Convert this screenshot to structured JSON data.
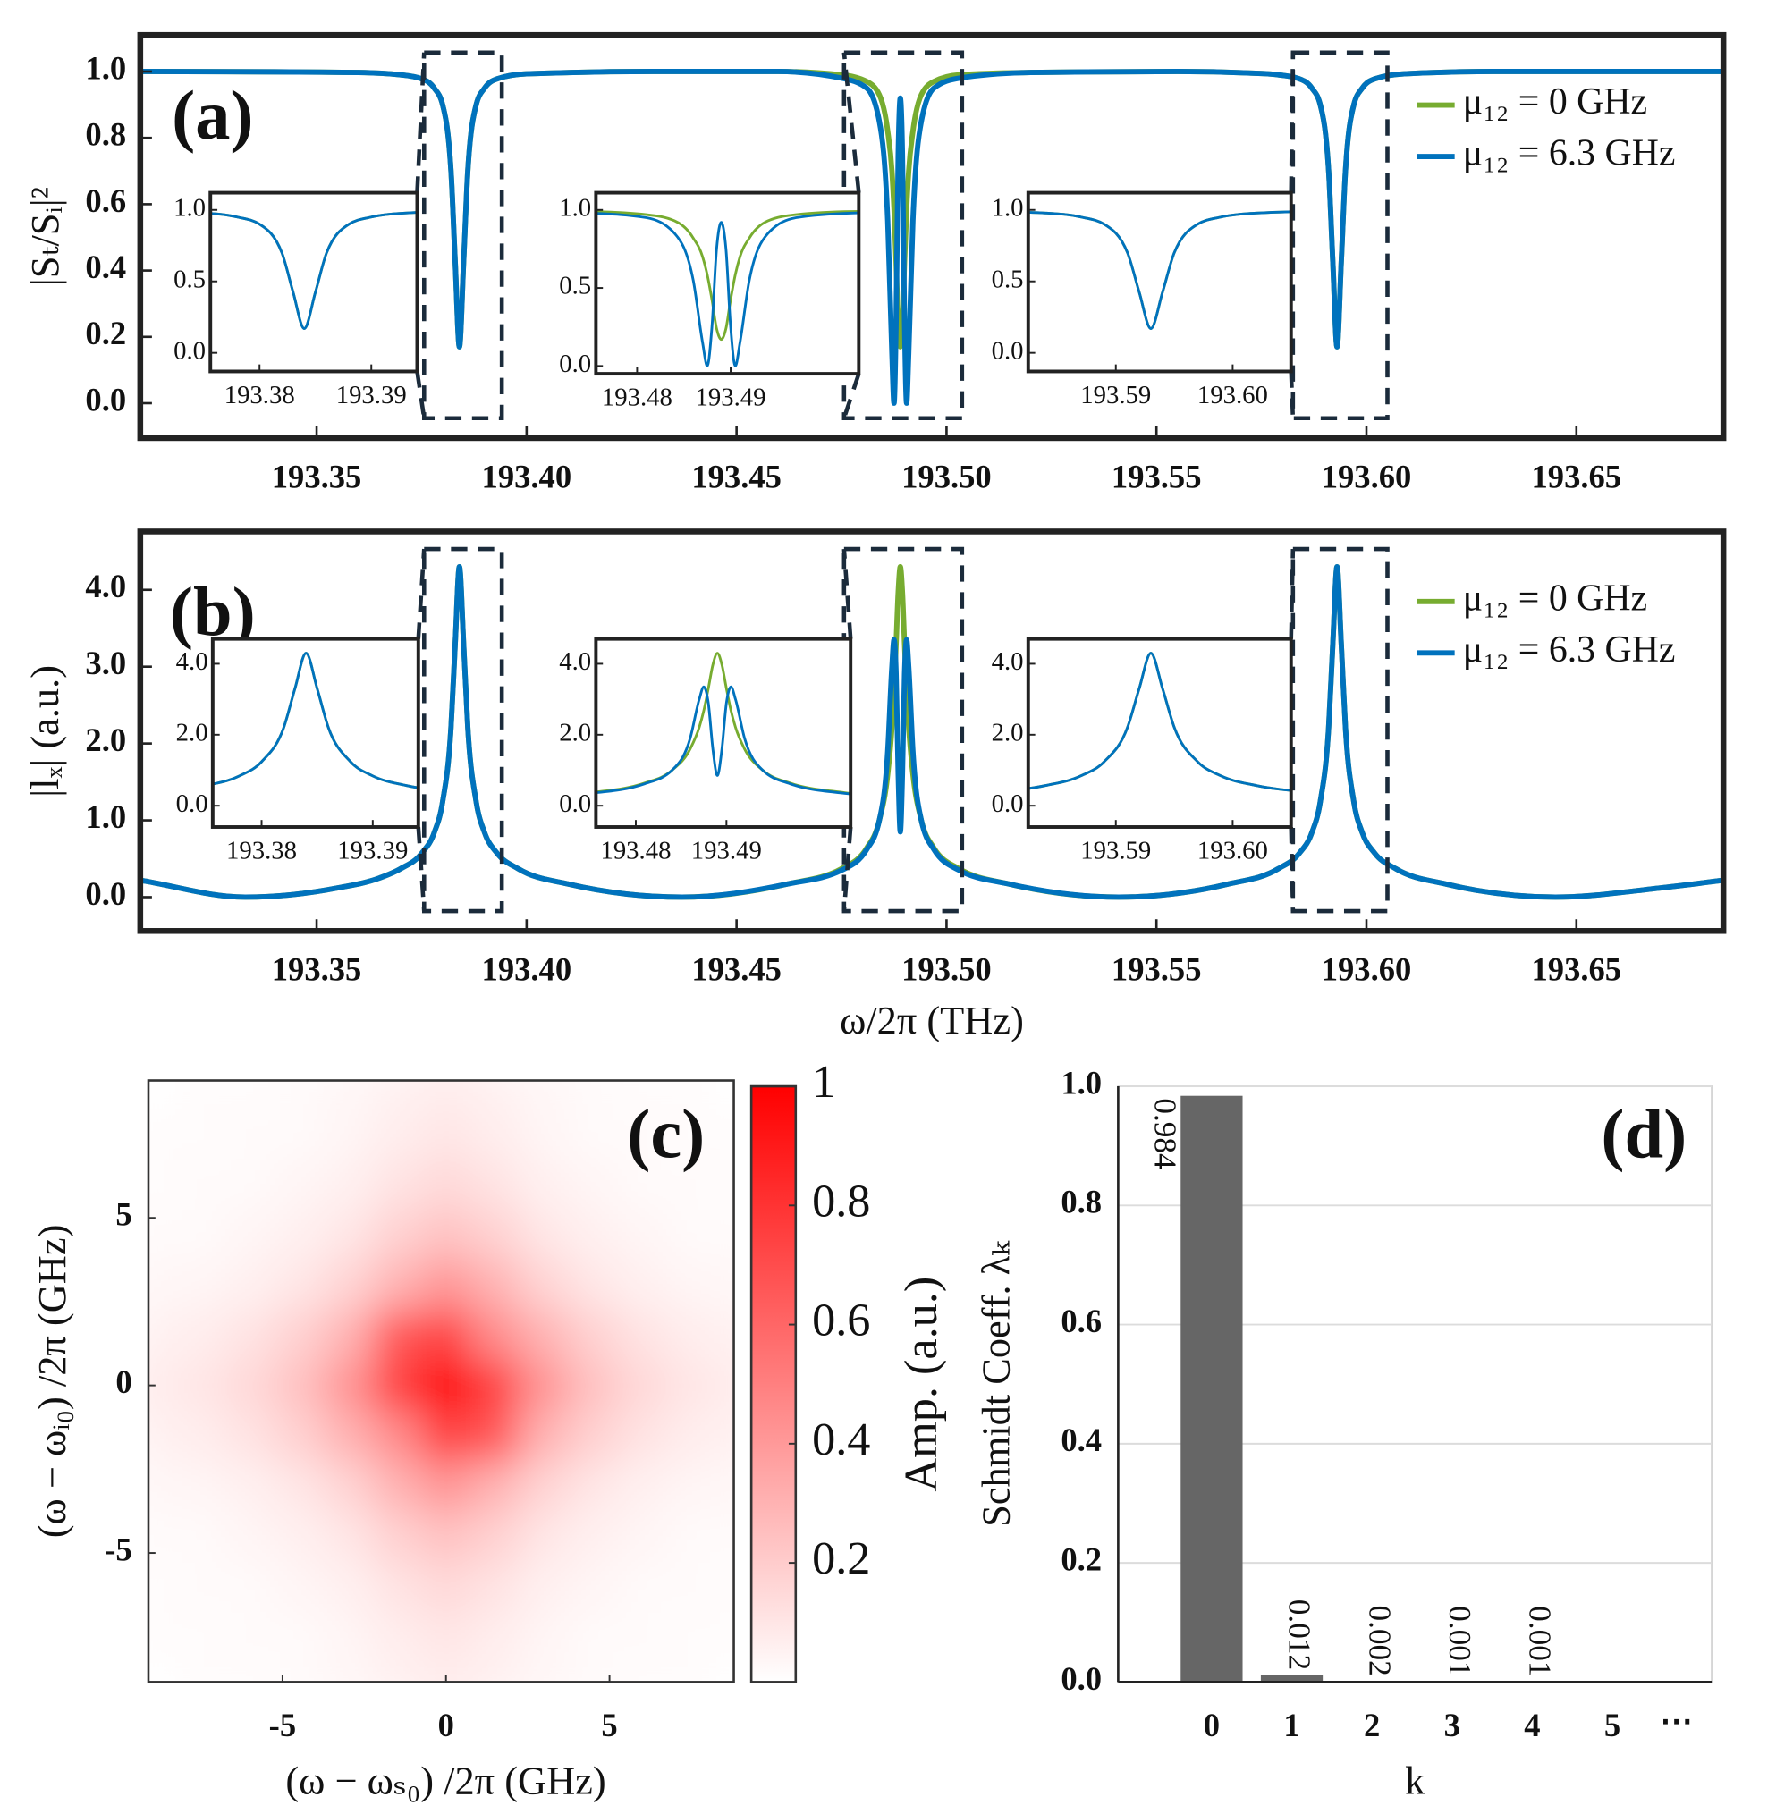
{
  "chart_data": [
    {
      "type": "line",
      "annotation": "(a)",
      "ylabel": "|Sₜ/Sᵢ|²",
      "x": [
        193.308,
        193.34,
        193.36,
        193.37,
        193.375,
        193.378,
        193.38,
        193.382,
        193.383,
        193.384,
        193.385,
        193.386,
        193.388,
        193.39,
        193.393,
        193.4,
        193.43,
        193.46,
        193.475,
        193.481,
        193.484,
        193.486,
        193.487,
        193.4875,
        193.488,
        193.4885,
        193.489,
        193.4895,
        193.49,
        193.4905,
        193.491,
        193.492,
        193.494,
        193.497,
        193.503,
        193.52,
        193.555,
        193.575,
        193.579,
        193.584,
        193.587,
        193.589,
        193.591,
        193.592,
        193.593,
        193.594,
        193.595,
        193.597,
        193.599,
        193.602,
        193.609,
        193.63,
        193.66,
        193.685
      ],
      "series": [
        {
          "name": "μ₁₂ = 0 GHz",
          "color": "#77ac30",
          "values": [
            1.0,
            0.999,
            0.997,
            0.99,
            0.978,
            0.95,
            0.9,
            0.7,
            0.425,
            0.17,
            0.425,
            0.7,
            0.9,
            0.95,
            0.978,
            0.993,
            1.0,
            1.0,
            0.99,
            0.97,
            0.93,
            0.82,
            0.7,
            0.585,
            0.425,
            0.24,
            0.17,
            0.24,
            0.425,
            0.585,
            0.7,
            0.82,
            0.93,
            0.97,
            0.99,
            0.997,
            1.0,
            0.994,
            0.99,
            0.978,
            0.95,
            0.9,
            0.7,
            0.425,
            0.17,
            0.425,
            0.7,
            0.9,
            0.95,
            0.978,
            0.993,
            1.0,
            1.0,
            1.0
          ]
        },
        {
          "name": "μ₁₂ = 6.3 GHz",
          "color": "#0072bd",
          "values": [
            1.0,
            0.999,
            0.997,
            0.99,
            0.978,
            0.95,
            0.9,
            0.7,
            0.425,
            0.17,
            0.425,
            0.7,
            0.9,
            0.95,
            0.978,
            0.993,
            1.0,
            1.0,
            0.98,
            0.95,
            0.85,
            0.55,
            0.15,
            0.0,
            0.25,
            0.75,
            0.92,
            0.75,
            0.25,
            0.0,
            0.15,
            0.55,
            0.85,
            0.95,
            0.98,
            0.997,
            1.0,
            0.994,
            0.99,
            0.978,
            0.95,
            0.9,
            0.7,
            0.425,
            0.17,
            0.425,
            0.7,
            0.9,
            0.95,
            0.978,
            0.993,
            1.0,
            1.0,
            1.0
          ]
        }
      ],
      "xlim": [
        193.308,
        193.685
      ],
      "xticks": [
        193.35,
        {
          "value": 193.4,
          "label": "193.40"
        },
        193.45,
        {
          "value": 193.5,
          "label": "193.50"
        },
        193.55,
        {
          "value": 193.6,
          "label": "193.60"
        },
        193.65
      ],
      "ylim": [
        -0.105,
        1.11
      ],
      "yticks": [
        {
          "value": 0,
          "label": "0.0"
        },
        0.2,
        0.4,
        0.6,
        0.8,
        {
          "value": 1,
          "label": "1.0"
        }
      ],
      "legend": "upper right",
      "insets": [
        {
          "xlim": [
            193.3756,
            193.3941
          ],
          "xticks": [
            193.38,
            193.39
          ],
          "ylim": [
            -0.13,
            1.12
          ],
          "yticks": [
            {
              "value": 0,
              "label": "0.0"
            },
            0.5,
            {
              "value": 1,
              "label": "1.0"
            }
          ]
        },
        {
          "xlim": [
            193.4756,
            193.5037
          ],
          "xticks": [
            193.48,
            193.49
          ],
          "ylim": [
            -0.05,
            1.11
          ],
          "yticks": [
            {
              "value": 0,
              "label": "0.0"
            },
            0.5,
            {
              "value": 1,
              "label": "1.0"
            }
          ]
        },
        {
          "xlim": [
            193.5825,
            193.605
          ],
          "xticks": [
            193.59,
            {
              "value": 193.6,
              "label": "193.60"
            }
          ],
          "ylim": [
            -0.13,
            1.12
          ],
          "yticks": [
            {
              "value": 0,
              "label": "0.0"
            },
            0.5,
            {
              "value": 1,
              "label": "1.0"
            }
          ]
        }
      ]
    },
    {
      "type": "line",
      "annotation": "(b)",
      "ylabel": "|lₓ| (a.u.)",
      "xlabel": "ω/2π (THz)",
      "x": [
        193.308,
        193.333,
        193.355,
        193.365,
        193.37,
        193.375,
        193.378,
        193.38,
        193.382,
        193.383,
        193.384,
        193.385,
        193.386,
        193.388,
        193.39,
        193.393,
        193.398,
        193.41,
        193.437,
        193.462,
        193.475,
        193.481,
        193.484,
        193.486,
        193.487,
        193.4875,
        193.488,
        193.4885,
        193.489,
        193.4895,
        193.49,
        193.4905,
        193.491,
        193.492,
        193.494,
        193.497,
        193.503,
        193.515,
        193.541,
        193.567,
        193.579,
        193.584,
        193.587,
        193.589,
        193.591,
        193.592,
        193.593,
        193.594,
        193.595,
        193.597,
        193.599,
        193.602,
        193.607,
        193.619,
        193.645,
        193.67,
        193.685
      ],
      "series": [
        {
          "name": "μ₁₂ = 0 GHz",
          "color": "#77ac30",
          "values": [
            0.22,
            0.0,
            0.12,
            0.25,
            0.37,
            0.57,
            0.84,
            1.24,
            2.21,
            3.3,
            4.3,
            3.3,
            2.21,
            1.24,
            0.84,
            0.57,
            0.37,
            0.17,
            0.0,
            0.17,
            0.37,
            0.64,
            1.0,
            1.6,
            2.21,
            2.68,
            3.3,
            3.97,
            4.3,
            3.97,
            3.3,
            2.68,
            2.21,
            1.6,
            1.0,
            0.64,
            0.37,
            0.17,
            0.0,
            0.17,
            0.37,
            0.57,
            0.84,
            1.24,
            2.21,
            3.3,
            4.3,
            3.3,
            2.21,
            1.24,
            0.84,
            0.57,
            0.37,
            0.17,
            0.0,
            0.12,
            0.22
          ]
        },
        {
          "name": "μ₁₂ = 6.3 GHz",
          "color": "#0072bd",
          "values": [
            0.22,
            0.0,
            0.12,
            0.25,
            0.37,
            0.57,
            0.84,
            1.24,
            2.21,
            3.3,
            4.3,
            3.3,
            2.21,
            1.24,
            0.84,
            0.57,
            0.37,
            0.17,
            0.0,
            0.17,
            0.35,
            0.62,
            1.0,
            1.9,
            3.0,
            3.35,
            2.9,
            1.6,
            0.85,
            1.6,
            2.9,
            3.35,
            3.0,
            1.9,
            1.0,
            0.62,
            0.35,
            0.17,
            0.0,
            0.17,
            0.37,
            0.57,
            0.84,
            1.24,
            2.21,
            3.3,
            4.3,
            3.3,
            2.21,
            1.24,
            0.84,
            0.57,
            0.37,
            0.17,
            0.0,
            0.12,
            0.22
          ]
        }
      ],
      "xlim": [
        193.308,
        193.685
      ],
      "xticks": [
        193.35,
        {
          "value": 193.4,
          "label": "193.40"
        },
        193.45,
        {
          "value": 193.5,
          "label": "193.50"
        },
        193.55,
        {
          "value": 193.6,
          "label": "193.60"
        },
        193.65
      ],
      "ylim": [
        -0.44,
        4.76
      ],
      "yticks": [
        {
          "value": 0,
          "label": "0.0"
        },
        {
          "value": 1,
          "label": "1.0"
        },
        {
          "value": 2,
          "label": "2.0"
        },
        {
          "value": 3,
          "label": "3.0"
        },
        {
          "value": 4,
          "label": "4.0"
        }
      ],
      "legend": "upper right",
      "insets": [
        {
          "xlim": [
            193.3756,
            193.3941
          ],
          "xticks": [
            193.38,
            193.39
          ],
          "ylim": [
            -0.6,
            4.7
          ],
          "yticks": [
            {
              "value": 0,
              "label": "0.0"
            },
            {
              "value": 2,
              "label": "2.0"
            },
            {
              "value": 4,
              "label": "4.0"
            }
          ]
        },
        {
          "xlim": [
            193.4756,
            193.5037
          ],
          "xticks": [
            193.48,
            193.49
          ],
          "ylim": [
            -0.6,
            4.7
          ],
          "yticks": [
            {
              "value": 0,
              "label": "0.0"
            },
            {
              "value": 2,
              "label": "2.0"
            },
            {
              "value": 4,
              "label": "4.0"
            }
          ]
        },
        {
          "xlim": [
            193.5825,
            193.605
          ],
          "xticks": [
            193.59,
            {
              "value": 193.6,
              "label": "193.60"
            }
          ],
          "ylim": [
            -0.6,
            4.7
          ],
          "yticks": [
            {
              "value": 0,
              "label": "0.0"
            },
            {
              "value": 2,
              "label": "2.0"
            },
            {
              "value": 4,
              "label": "4.0"
            }
          ]
        }
      ]
    },
    {
      "type": "heatmap",
      "annotation": "(c)",
      "xlabel": "(ω − ωₛ₀) /2π (GHz)",
      "ylabel": "(ω − ωᵢ₀) /2π (GHz)",
      "x": [
        -9,
        -7.5,
        -6,
        -4.5,
        -3,
        -1.5,
        0,
        1.5,
        3,
        4.5,
        6,
        7.5,
        9
      ],
      "y": [
        -9,
        -7.5,
        -6,
        -4.5,
        -3,
        -1.5,
        0,
        1.5,
        3,
        4.5,
        6,
        7.5,
        9
      ],
      "z": [
        [
          0.0,
          0.01,
          0.01,
          0.02,
          0.03,
          0.05,
          0.07,
          0.05,
          0.03,
          0.02,
          0.01,
          0.01,
          0.0
        ],
        [
          0.01,
          0.01,
          0.02,
          0.02,
          0.04,
          0.07,
          0.1,
          0.07,
          0.04,
          0.02,
          0.02,
          0.01,
          0.01
        ],
        [
          0.01,
          0.02,
          0.02,
          0.04,
          0.06,
          0.11,
          0.15,
          0.11,
          0.06,
          0.04,
          0.02,
          0.02,
          0.01
        ],
        [
          0.02,
          0.02,
          0.04,
          0.06,
          0.1,
          0.18,
          0.24,
          0.18,
          0.1,
          0.06,
          0.04,
          0.02,
          0.02
        ],
        [
          0.03,
          0.04,
          0.06,
          0.1,
          0.17,
          0.3,
          0.41,
          0.3,
          0.17,
          0.1,
          0.06,
          0.04,
          0.03
        ],
        [
          0.05,
          0.07,
          0.11,
          0.18,
          0.3,
          0.45,
          0.74,
          0.65,
          0.3,
          0.18,
          0.11,
          0.07,
          0.05
        ],
        [
          0.07,
          0.1,
          0.15,
          0.24,
          0.41,
          0.74,
          1,
          0.74,
          0.41,
          0.24,
          0.15,
          0.1,
          0.07
        ],
        [
          0.05,
          0.07,
          0.11,
          0.18,
          0.3,
          0.65,
          0.74,
          0.45,
          0.3,
          0.18,
          0.11,
          0.07,
          0.05
        ],
        [
          0.03,
          0.04,
          0.06,
          0.1,
          0.17,
          0.3,
          0.41,
          0.3,
          0.17,
          0.1,
          0.06,
          0.04,
          0.03
        ],
        [
          0.02,
          0.02,
          0.04,
          0.06,
          0.1,
          0.18,
          0.24,
          0.18,
          0.1,
          0.06,
          0.04,
          0.02,
          0.02
        ],
        [
          0.01,
          0.02,
          0.02,
          0.04,
          0.06,
          0.11,
          0.15,
          0.11,
          0.06,
          0.04,
          0.02,
          0.02,
          0.01
        ],
        [
          0.01,
          0.01,
          0.02,
          0.02,
          0.04,
          0.07,
          0.1,
          0.07,
          0.04,
          0.02,
          0.02,
          0.01,
          0.01
        ],
        [
          0.0,
          0.01,
          0.01,
          0.02,
          0.03,
          0.05,
          0.07,
          0.05,
          0.03,
          0.02,
          0.01,
          0.01,
          0.0
        ]
      ],
      "xlim": [
        -9.1,
        8.8
      ],
      "xticks": [
        -5,
        0,
        5
      ],
      "ylim": [
        -8.85,
        9.1
      ],
      "yticks": [
        -5,
        0,
        5
      ],
      "colorbar": {
        "clim": [
          0,
          1
        ],
        "ticks": [
          0.2,
          0.4,
          0.6,
          0.8,
          1
        ],
        "label": "Amp. (a.u.)",
        "colors": [
          "#ffffff",
          "#ff0000"
        ]
      }
    },
    {
      "type": "bar",
      "annotation": "(d)",
      "xlabel": "k",
      "ylabel": "Schmidt Coeff. λₖ",
      "categories": [
        "0",
        "1",
        "2",
        "3",
        "4",
        "5"
      ],
      "more_label": "⋯",
      "values": [
        0.984,
        0.012,
        0.002,
        0.001,
        0.001,
        null
      ],
      "color": "#666666",
      "ylim": [
        0,
        1
      ],
      "yticks": [
        {
          "value": 0,
          "label": "0.0"
        },
        0.2,
        0.4,
        0.6,
        0.8,
        {
          "value": 1,
          "label": "1.0"
        }
      ],
      "grid": true
    }
  ]
}
